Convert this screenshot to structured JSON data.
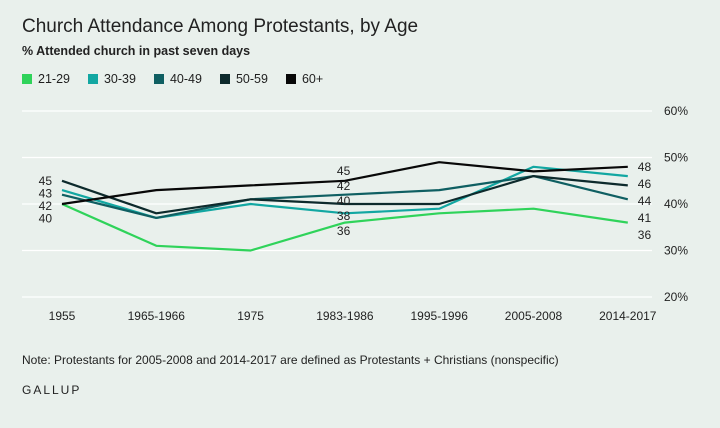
{
  "brand": "GALLUP",
  "note": "Note: Protestants for 2005-2008 and 2014-2017 are defined as Protestants + Christians (nonspecific)",
  "chart_data": {
    "type": "line",
    "title": "Church Attendance Among Protestants, by Age",
    "subtitle": "% Attended church in past seven days",
    "xlabel": "",
    "ylabel": "",
    "categories": [
      "1955",
      "1965-1966",
      "1975",
      "1983-1986",
      "1995-1996",
      "2005-2008",
      "2014-2017"
    ],
    "ylim": [
      20,
      60
    ],
    "yticks": [
      20,
      30,
      40,
      50,
      60
    ],
    "ytick_labels": [
      "20%",
      "30%",
      "40%",
      "50%",
      "60%"
    ],
    "grid": true,
    "legend_position": "top-left",
    "series": [
      {
        "name": "21-29",
        "color": "#2fd35a",
        "values": [
          40,
          31,
          30,
          36,
          38,
          39,
          36
        ]
      },
      {
        "name": "30-39",
        "color": "#12a7a2",
        "values": [
          43,
          37,
          40,
          38,
          39,
          48,
          46
        ]
      },
      {
        "name": "40-49",
        "color": "#0f5f62",
        "values": [
          42,
          37,
          41,
          42,
          43,
          46,
          41
        ]
      },
      {
        "name": "50-59",
        "color": "#0d2a2c",
        "values": [
          45,
          38,
          41,
          40,
          40,
          46,
          44
        ]
      },
      {
        "name": "60+",
        "color": "#080808",
        "values": [
          40,
          43,
          44,
          45,
          49,
          47,
          48
        ]
      }
    ],
    "data_labels": [
      {
        "category": "1955",
        "value": 45,
        "text": "45"
      },
      {
        "category": "1955",
        "value": 43,
        "text": "43"
      },
      {
        "category": "1955",
        "value": 42,
        "text": "42"
      },
      {
        "category": "1955",
        "value": 40,
        "text": "40"
      },
      {
        "category": "1983-1986",
        "value": 45,
        "text": "45"
      },
      {
        "category": "1983-1986",
        "value": 42,
        "text": "42"
      },
      {
        "category": "1983-1986",
        "value": 40,
        "text": "40"
      },
      {
        "category": "1983-1986",
        "value": 38,
        "text": "38"
      },
      {
        "category": "1983-1986",
        "value": 36,
        "text": "36"
      },
      {
        "category": "2014-2017",
        "value": 48,
        "text": "48"
      },
      {
        "category": "2014-2017",
        "value": 46,
        "text": "46"
      },
      {
        "category": "2014-2017",
        "value": 44,
        "text": "44"
      },
      {
        "category": "2014-2017",
        "value": 41,
        "text": "41"
      },
      {
        "category": "2014-2017",
        "value": 36,
        "text": "36"
      }
    ]
  }
}
